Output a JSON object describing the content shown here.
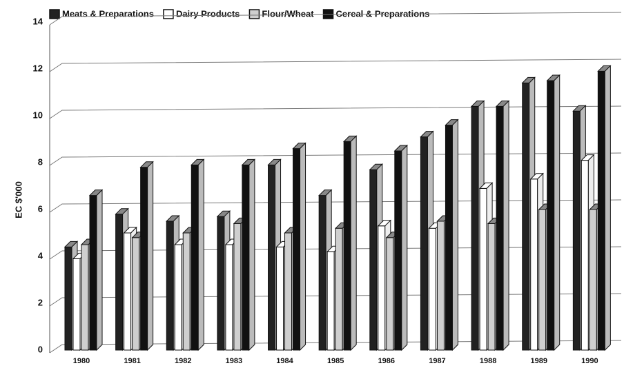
{
  "chart_data": {
    "type": "bar3d",
    "ylabel": "EC $'000",
    "categories": [
      "1980",
      "1981",
      "1982",
      "1983",
      "1984",
      "1985",
      "1986",
      "1987",
      "1988",
      "1989",
      "1990"
    ],
    "series": [
      {
        "name": "Meats & Preparations",
        "color": "#222222",
        "values": [
          4.4,
          5.8,
          5.5,
          5.7,
          7.9,
          6.6,
          7.7,
          9.1,
          10.4,
          11.4,
          10.2
        ]
      },
      {
        "name": "Dairy Products",
        "color": "#ffffff",
        "values": [
          3.9,
          5.0,
          4.5,
          4.5,
          4.4,
          4.2,
          5.3,
          5.2,
          6.9,
          7.3,
          8.1
        ]
      },
      {
        "name": "Flour/Wheat",
        "color": "#cfcfcf",
        "values": [
          4.5,
          4.8,
          5.0,
          5.4,
          5.0,
          5.2,
          4.8,
          5.5,
          5.4,
          6.0,
          6.0
        ]
      },
      {
        "name": "Cereal & Preparations",
        "color": "#111111",
        "values": [
          6.6,
          7.8,
          7.9,
          7.9,
          8.6,
          8.9,
          8.5,
          9.6,
          10.4,
          11.5,
          11.9
        ]
      }
    ],
    "ylim": [
      0,
      14
    ],
    "yticks": [
      0,
      2,
      4,
      6,
      8,
      10,
      12,
      14
    ],
    "grid": true
  }
}
